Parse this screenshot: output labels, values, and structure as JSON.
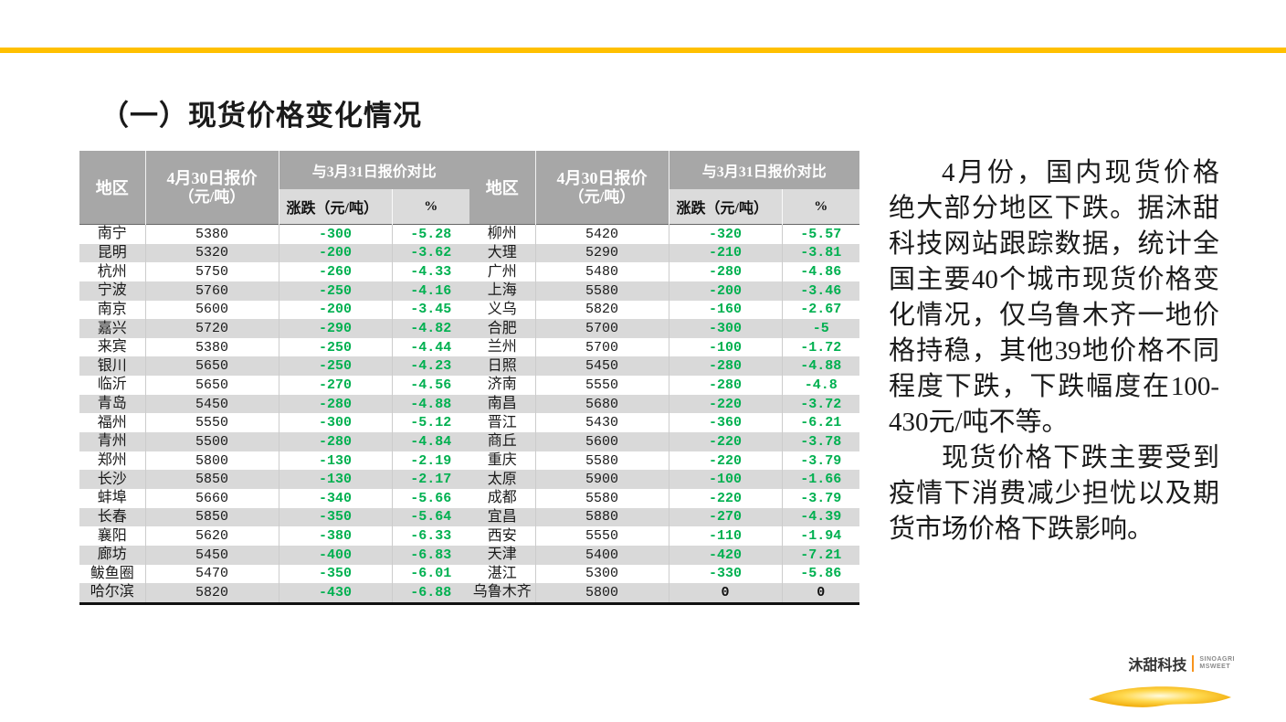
{
  "slide": {
    "title": "（一）现货价格变化情况",
    "accent_bar_color": "#FFC000"
  },
  "table": {
    "headers": {
      "region": "地区",
      "price_line1": "4月30日报价",
      "price_line2": "（元/吨）",
      "compare": "与3月31日报价对比",
      "change": "涨跌（元/吨）",
      "pct": "%"
    },
    "colors": {
      "header_bg": "#A7A7A7",
      "subheader_bg": "#DBDBDB",
      "stripe_bg": "#D9D9D9",
      "down_green": "#00B050",
      "neutral_black": "#111111"
    },
    "left_rows": [
      {
        "city": "南宁",
        "price": "5380",
        "change": "-300",
        "pct": "-5.28"
      },
      {
        "city": "昆明",
        "price": "5320",
        "change": "-200",
        "pct": "-3.62"
      },
      {
        "city": "杭州",
        "price": "5750",
        "change": "-260",
        "pct": "-4.33"
      },
      {
        "city": "宁波",
        "price": "5760",
        "change": "-250",
        "pct": "-4.16"
      },
      {
        "city": "南京",
        "price": "5600",
        "change": "-200",
        "pct": "-3.45"
      },
      {
        "city": "嘉兴",
        "price": "5720",
        "change": "-290",
        "pct": "-4.82"
      },
      {
        "city": "来宾",
        "price": "5380",
        "change": "-250",
        "pct": "-4.44"
      },
      {
        "city": "银川",
        "price": "5650",
        "change": "-250",
        "pct": "-4.23"
      },
      {
        "city": "临沂",
        "price": "5650",
        "change": "-270",
        "pct": "-4.56"
      },
      {
        "city": "青岛",
        "price": "5450",
        "change": "-280",
        "pct": "-4.88"
      },
      {
        "city": "福州",
        "price": "5550",
        "change": "-300",
        "pct": "-5.12"
      },
      {
        "city": "青州",
        "price": "5500",
        "change": "-280",
        "pct": "-4.84"
      },
      {
        "city": "郑州",
        "price": "5800",
        "change": "-130",
        "pct": "-2.19"
      },
      {
        "city": "长沙",
        "price": "5850",
        "change": "-130",
        "pct": "-2.17"
      },
      {
        "city": "蚌埠",
        "price": "5660",
        "change": "-340",
        "pct": "-5.66"
      },
      {
        "city": "长春",
        "price": "5850",
        "change": "-350",
        "pct": "-5.64"
      },
      {
        "city": "襄阳",
        "price": "5620",
        "change": "-380",
        "pct": "-6.33"
      },
      {
        "city": "廊坊",
        "price": "5450",
        "change": "-400",
        "pct": "-6.83"
      },
      {
        "city": "鲅鱼圈",
        "price": "5470",
        "change": "-350",
        "pct": "-6.01"
      },
      {
        "city": "哈尔滨",
        "price": "5820",
        "change": "-430",
        "pct": "-6.88"
      }
    ],
    "right_rows": [
      {
        "city": "柳州",
        "price": "5420",
        "change": "-320",
        "pct": "-5.57"
      },
      {
        "city": "大理",
        "price": "5290",
        "change": "-210",
        "pct": "-3.81"
      },
      {
        "city": "广州",
        "price": "5480",
        "change": "-280",
        "pct": "-4.86"
      },
      {
        "city": "上海",
        "price": "5580",
        "change": "-200",
        "pct": "-3.46"
      },
      {
        "city": "义乌",
        "price": "5820",
        "change": "-160",
        "pct": "-2.67"
      },
      {
        "city": "合肥",
        "price": "5700",
        "change": "-300",
        "pct": "-5"
      },
      {
        "city": "兰州",
        "price": "5700",
        "change": "-100",
        "pct": "-1.72"
      },
      {
        "city": "日照",
        "price": "5450",
        "change": "-280",
        "pct": "-4.88"
      },
      {
        "city": "济南",
        "price": "5550",
        "change": "-280",
        "pct": "-4.8"
      },
      {
        "city": "南昌",
        "price": "5680",
        "change": "-220",
        "pct": "-3.72"
      },
      {
        "city": "晋江",
        "price": "5430",
        "change": "-360",
        "pct": "-6.21"
      },
      {
        "city": "商丘",
        "price": "5600",
        "change": "-220",
        "pct": "-3.78"
      },
      {
        "city": "重庆",
        "price": "5580",
        "change": "-220",
        "pct": "-3.79"
      },
      {
        "city": "太原",
        "price": "5900",
        "change": "-100",
        "pct": "-1.66"
      },
      {
        "city": "成都",
        "price": "5580",
        "change": "-220",
        "pct": "-3.79"
      },
      {
        "city": "宜昌",
        "price": "5880",
        "change": "-270",
        "pct": "-4.39"
      },
      {
        "city": "西安",
        "price": "5550",
        "change": "-110",
        "pct": "-1.94"
      },
      {
        "city": "天津",
        "price": "5400",
        "change": "-420",
        "pct": "-7.21"
      },
      {
        "city": "湛江",
        "price": "5300",
        "change": "-330",
        "pct": "-5.86"
      },
      {
        "city": "乌鲁木齐",
        "price": "5800",
        "change": "0",
        "pct": "0",
        "neutral": true
      }
    ]
  },
  "commentary": {
    "para1": "4月份，国内现货价格绝大部分地区下跌。据沐甜科技网站跟踪数据，统计全国主要40个城市现货价格变化情况，仅乌鲁木齐一地价格持稳，其他39地价格不同程度下跌，下跌幅度在100-430元/吨不等。",
    "para2": "现货价格下跌主要受到疫情下消费减少担忧以及期货市场价格下跌影响。"
  },
  "logo": {
    "cn_name": "沐甜科技",
    "en_line1": "SINOAGRI",
    "en_line2": "MSWEET",
    "divider_orange": "#F7941D",
    "swoosh_gold": "#F2A900"
  }
}
